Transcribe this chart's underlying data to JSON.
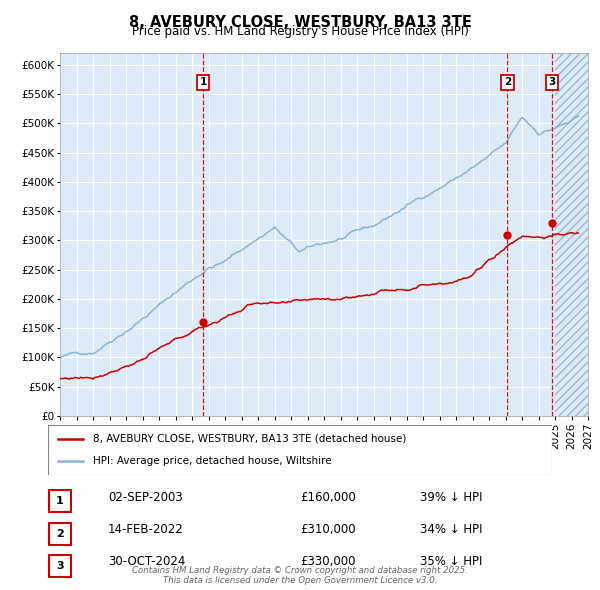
{
  "title": "8, AVEBURY CLOSE, WESTBURY, BA13 3TE",
  "subtitle": "Price paid vs. HM Land Registry's House Price Index (HPI)",
  "legend_line1": "8, AVEBURY CLOSE, WESTBURY, BA13 3TE (detached house)",
  "legend_line2": "HPI: Average price, detached house, Wiltshire",
  "footer": "Contains HM Land Registry data © Crown copyright and database right 2025.\nThis data is licensed under the Open Government Licence v3.0.",
  "transactions": [
    {
      "label": "1",
      "date": "02-SEP-2003",
      "price": "£160,000",
      "note": "39% ↓ HPI",
      "year": 2003.67,
      "price_val": 160000
    },
    {
      "label": "2",
      "date": "14-FEB-2022",
      "price": "£310,000",
      "note": "34% ↓ HPI",
      "year": 2022.12,
      "price_val": 310000
    },
    {
      "label": "3",
      "date": "30-OCT-2024",
      "price": "£330,000",
      "note": "35% ↓ HPI",
      "year": 2024.83,
      "price_val": 330000
    }
  ],
  "hpi_color": "#8ab4d8",
  "price_color": "#cc0000",
  "dot_color": "#cc0000",
  "vline_color": "#cc0000",
  "bg_color": "#ddeaf7",
  "ylim": [
    0,
    620000
  ],
  "xlim_start": 1995,
  "xlim_end": 2027,
  "yticks": [
    0,
    50000,
    100000,
    150000,
    200000,
    250000,
    300000,
    350000,
    400000,
    450000,
    500000,
    550000,
    600000
  ],
  "hatch_start": 2025.0
}
